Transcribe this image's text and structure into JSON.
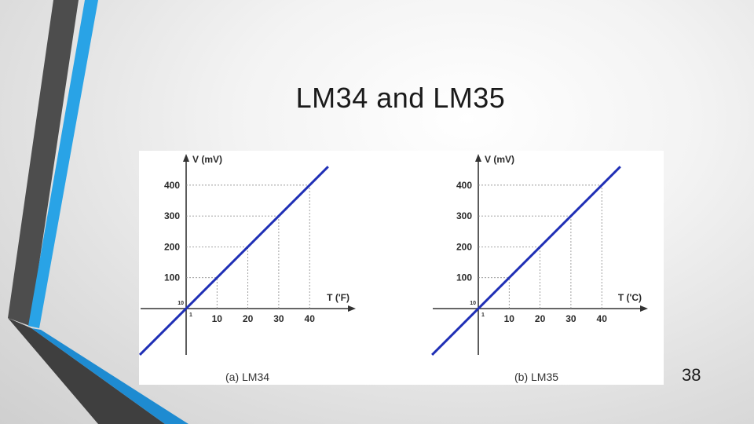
{
  "slide": {
    "title": "LM34 and LM35",
    "page_number": "38"
  },
  "colors": {
    "line": "#1f2fb5",
    "stripe_blue": "#29a3e6",
    "stripe_dark": "#4d4d4d"
  },
  "chart_data": [
    {
      "type": "line",
      "caption": "(a) LM34",
      "xlabel": "T ('F)",
      "ylabel": "V (mV)",
      "x_ticks": [
        "10",
        "20",
        "30",
        "40"
      ],
      "y_ticks": [
        "100",
        "200",
        "300",
        "400"
      ],
      "origin_labels": {
        "y": "10",
        "x": "1"
      },
      "grid": "dotted guides to marked points",
      "series": [
        {
          "x": [
            -15,
            46
          ],
          "y": [
            -150,
            460
          ]
        }
      ]
    },
    {
      "type": "line",
      "caption": "(b) LM35",
      "xlabel": "T ('C)",
      "ylabel": "V (mV)",
      "x_ticks": [
        "10",
        "20",
        "30",
        "40"
      ],
      "y_ticks": [
        "100",
        "200",
        "300",
        "400"
      ],
      "origin_labels": {
        "y": "10",
        "x": "1"
      },
      "grid": "dotted guides to marked points",
      "series": [
        {
          "x": [
            -15,
            46
          ],
          "y": [
            -150,
            460
          ]
        }
      ]
    }
  ]
}
